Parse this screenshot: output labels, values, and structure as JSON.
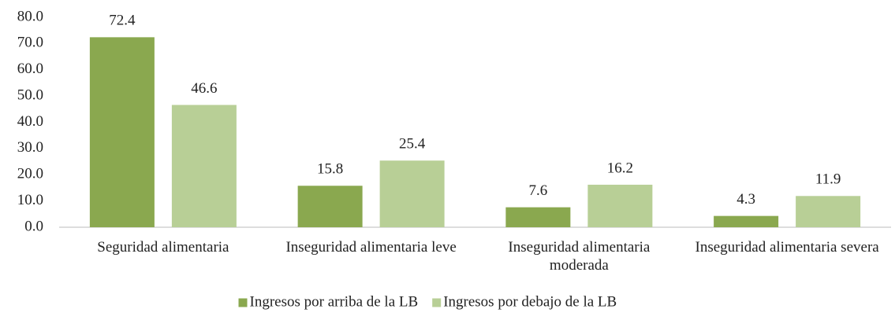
{
  "chart_data": {
    "type": "bar",
    "categories": [
      "Seguridad alimentaria",
      "Inseguridad alimentaria leve",
      "Inseguridad alimentaria moderada",
      "Inseguridad alimentaria severa"
    ],
    "series": [
      {
        "name": "Ingresos por arriba de la LB",
        "color": "#8aa84f",
        "values": [
          72.4,
          15.8,
          7.6,
          4.3
        ]
      },
      {
        "name": "Ingresos por debajo de la LB",
        "color": "#b8cf96",
        "values": [
          46.6,
          25.4,
          16.2,
          11.9
        ]
      }
    ],
    "ylim": [
      0,
      80
    ],
    "yticks": [
      {
        "value": 0,
        "label": "0.0"
      },
      {
        "value": 10,
        "label": "10.0"
      },
      {
        "value": 20,
        "label": "20.0"
      },
      {
        "value": 30,
        "label": "30.0"
      },
      {
        "value": 40,
        "label": "40.0"
      },
      {
        "value": 50,
        "label": "50.0"
      },
      {
        "value": 60,
        "label": "60.0"
      },
      {
        "value": 70,
        "label": "70.0"
      },
      {
        "value": 80,
        "label": "80.0"
      }
    ],
    "grid": false,
    "legend": "bottom"
  }
}
